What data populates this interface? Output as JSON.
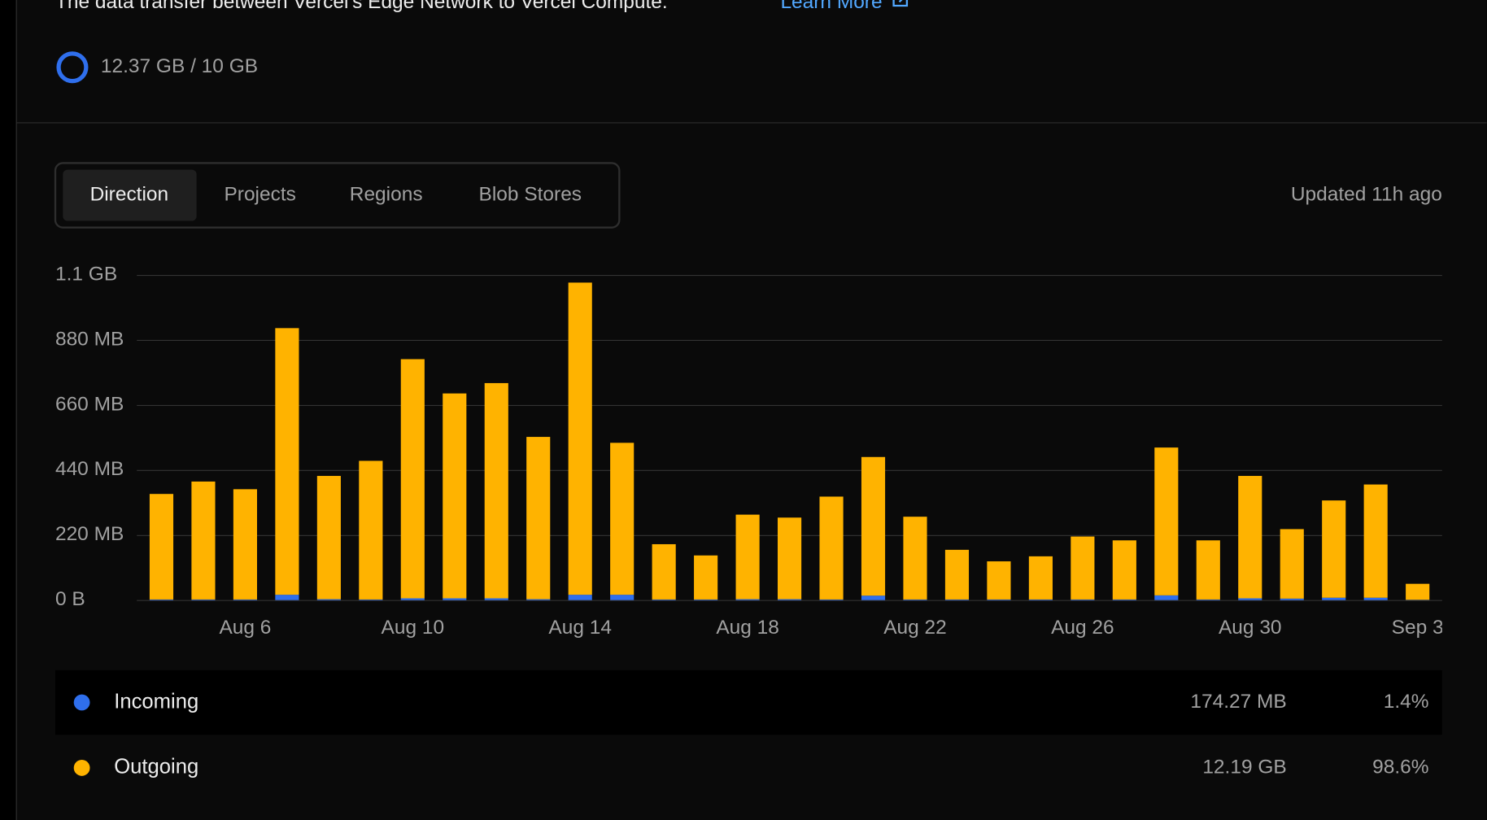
{
  "header": {
    "description": "The data transfer between Vercel's Edge Network to Vercel Compute.",
    "link": "Learn More"
  },
  "usage": "12.37 GB / 10 GB",
  "tabs": [
    "Direction",
    "Projects",
    "Regions",
    "Blob Stores"
  ],
  "updated": "Updated 11h ago",
  "chart_data": {
    "type": "bar",
    "stacked": true,
    "categories": [
      null,
      null,
      "Aug 6",
      null,
      null,
      null,
      "Aug 10",
      null,
      null,
      null,
      "Aug 14",
      null,
      null,
      null,
      "Aug 18",
      null,
      null,
      null,
      "Aug 22",
      null,
      null,
      null,
      "Aug 26",
      null,
      null,
      null,
      "Aug 30",
      null,
      null,
      null,
      "Sep 3"
    ],
    "series": [
      {
        "name": "Incoming",
        "color": "#2f6fed",
        "values": [
          2,
          2,
          2,
          18,
          3,
          2,
          6,
          6,
          6,
          3,
          18,
          18,
          2,
          2,
          3,
          3,
          2,
          15,
          2,
          2,
          2,
          2,
          2,
          2,
          16,
          2,
          6,
          5,
          8,
          8,
          1
        ]
      },
      {
        "name": "Outgoing",
        "color": "#ffb300",
        "values": [
          357,
          399,
          373,
          902,
          417,
          469,
          809,
          693,
          728,
          549,
          1056,
          514,
          187,
          149,
          286,
          276,
          348,
          469,
          280,
          168,
          129,
          146,
          213,
          200,
          500,
          200,
          414,
          235,
          329,
          383,
          54
        ]
      }
    ],
    "ylim": [
      0,
      1100
    ],
    "yticks": [
      {
        "value": 0,
        "label": "0 B"
      },
      {
        "value": 220,
        "label": "220 MB"
      },
      {
        "value": 440,
        "label": "440 MB"
      },
      {
        "value": 660,
        "label": "660 MB"
      },
      {
        "value": 880,
        "label": "880 MB"
      },
      {
        "value": 1100,
        "label": "1.1 GB"
      }
    ],
    "grid": true
  },
  "summary": [
    {
      "amount": "174.27 MB",
      "share": "1.4%"
    },
    {
      "amount": "12.19 GB",
      "share": "98.6%"
    }
  ]
}
